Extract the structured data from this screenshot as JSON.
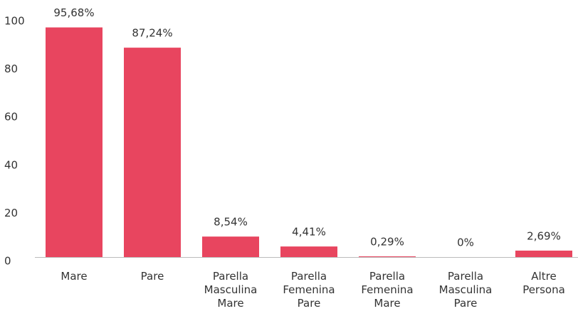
{
  "chart_data": {
    "type": "bar",
    "categories": [
      "Mare",
      "Pare",
      "Parella Masculina Mare",
      "Parella Femenina Pare",
      "Parella Femenina Mare",
      "Parella Masculina Pare",
      "Altre Persona"
    ],
    "values": [
      95.68,
      87.24,
      8.54,
      4.41,
      0.29,
      0,
      2.69
    ],
    "value_labels": [
      "95,68%",
      "87,24%",
      "8,54%",
      "4,41%",
      "0,29%",
      "0%",
      "2,69%"
    ],
    "color": "#e8455f",
    "ylim": [
      0,
      100
    ],
    "yticks": [
      0,
      20,
      40,
      60,
      80,
      100
    ],
    "grid": false
  }
}
